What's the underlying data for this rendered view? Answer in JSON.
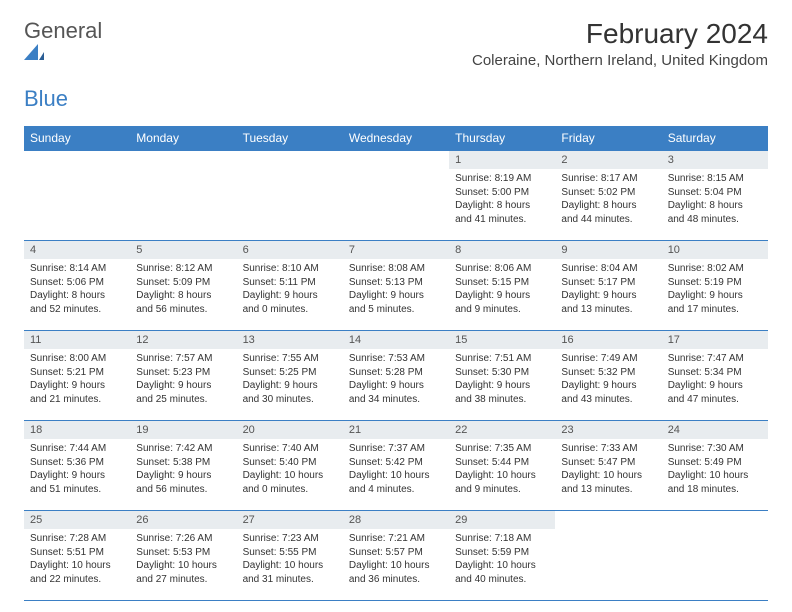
{
  "logo": {
    "text_general": "General",
    "text_blue": "Blue"
  },
  "header": {
    "month_title": "February 2024",
    "location": "Coleraine, Northern Ireland, United Kingdom"
  },
  "style": {
    "header_bg": "#3b7fc4",
    "header_fg": "#ffffff",
    "daynum_bg": "#e8ecef",
    "border_color": "#3b7fc4",
    "body_bg": "#ffffff",
    "text_color": "#333333",
    "cell_fontsize": 10,
    "header_fontsize": 12,
    "title_fontsize": 28,
    "location_fontsize": 15
  },
  "day_headers": [
    "Sunday",
    "Monday",
    "Tuesday",
    "Wednesday",
    "Thursday",
    "Friday",
    "Saturday"
  ],
  "weeks": [
    [
      null,
      null,
      null,
      null,
      {
        "n": "1",
        "sr": "Sunrise: 8:19 AM",
        "ss": "Sunset: 5:00 PM",
        "d1": "Daylight: 8 hours",
        "d2": "and 41 minutes."
      },
      {
        "n": "2",
        "sr": "Sunrise: 8:17 AM",
        "ss": "Sunset: 5:02 PM",
        "d1": "Daylight: 8 hours",
        "d2": "and 44 minutes."
      },
      {
        "n": "3",
        "sr": "Sunrise: 8:15 AM",
        "ss": "Sunset: 5:04 PM",
        "d1": "Daylight: 8 hours",
        "d2": "and 48 minutes."
      }
    ],
    [
      {
        "n": "4",
        "sr": "Sunrise: 8:14 AM",
        "ss": "Sunset: 5:06 PM",
        "d1": "Daylight: 8 hours",
        "d2": "and 52 minutes."
      },
      {
        "n": "5",
        "sr": "Sunrise: 8:12 AM",
        "ss": "Sunset: 5:09 PM",
        "d1": "Daylight: 8 hours",
        "d2": "and 56 minutes."
      },
      {
        "n": "6",
        "sr": "Sunrise: 8:10 AM",
        "ss": "Sunset: 5:11 PM",
        "d1": "Daylight: 9 hours",
        "d2": "and 0 minutes."
      },
      {
        "n": "7",
        "sr": "Sunrise: 8:08 AM",
        "ss": "Sunset: 5:13 PM",
        "d1": "Daylight: 9 hours",
        "d2": "and 5 minutes."
      },
      {
        "n": "8",
        "sr": "Sunrise: 8:06 AM",
        "ss": "Sunset: 5:15 PM",
        "d1": "Daylight: 9 hours",
        "d2": "and 9 minutes."
      },
      {
        "n": "9",
        "sr": "Sunrise: 8:04 AM",
        "ss": "Sunset: 5:17 PM",
        "d1": "Daylight: 9 hours",
        "d2": "and 13 minutes."
      },
      {
        "n": "10",
        "sr": "Sunrise: 8:02 AM",
        "ss": "Sunset: 5:19 PM",
        "d1": "Daylight: 9 hours",
        "d2": "and 17 minutes."
      }
    ],
    [
      {
        "n": "11",
        "sr": "Sunrise: 8:00 AM",
        "ss": "Sunset: 5:21 PM",
        "d1": "Daylight: 9 hours",
        "d2": "and 21 minutes."
      },
      {
        "n": "12",
        "sr": "Sunrise: 7:57 AM",
        "ss": "Sunset: 5:23 PM",
        "d1": "Daylight: 9 hours",
        "d2": "and 25 minutes."
      },
      {
        "n": "13",
        "sr": "Sunrise: 7:55 AM",
        "ss": "Sunset: 5:25 PM",
        "d1": "Daylight: 9 hours",
        "d2": "and 30 minutes."
      },
      {
        "n": "14",
        "sr": "Sunrise: 7:53 AM",
        "ss": "Sunset: 5:28 PM",
        "d1": "Daylight: 9 hours",
        "d2": "and 34 minutes."
      },
      {
        "n": "15",
        "sr": "Sunrise: 7:51 AM",
        "ss": "Sunset: 5:30 PM",
        "d1": "Daylight: 9 hours",
        "d2": "and 38 minutes."
      },
      {
        "n": "16",
        "sr": "Sunrise: 7:49 AM",
        "ss": "Sunset: 5:32 PM",
        "d1": "Daylight: 9 hours",
        "d2": "and 43 minutes."
      },
      {
        "n": "17",
        "sr": "Sunrise: 7:47 AM",
        "ss": "Sunset: 5:34 PM",
        "d1": "Daylight: 9 hours",
        "d2": "and 47 minutes."
      }
    ],
    [
      {
        "n": "18",
        "sr": "Sunrise: 7:44 AM",
        "ss": "Sunset: 5:36 PM",
        "d1": "Daylight: 9 hours",
        "d2": "and 51 minutes."
      },
      {
        "n": "19",
        "sr": "Sunrise: 7:42 AM",
        "ss": "Sunset: 5:38 PM",
        "d1": "Daylight: 9 hours",
        "d2": "and 56 minutes."
      },
      {
        "n": "20",
        "sr": "Sunrise: 7:40 AM",
        "ss": "Sunset: 5:40 PM",
        "d1": "Daylight: 10 hours",
        "d2": "and 0 minutes."
      },
      {
        "n": "21",
        "sr": "Sunrise: 7:37 AM",
        "ss": "Sunset: 5:42 PM",
        "d1": "Daylight: 10 hours",
        "d2": "and 4 minutes."
      },
      {
        "n": "22",
        "sr": "Sunrise: 7:35 AM",
        "ss": "Sunset: 5:44 PM",
        "d1": "Daylight: 10 hours",
        "d2": "and 9 minutes."
      },
      {
        "n": "23",
        "sr": "Sunrise: 7:33 AM",
        "ss": "Sunset: 5:47 PM",
        "d1": "Daylight: 10 hours",
        "d2": "and 13 minutes."
      },
      {
        "n": "24",
        "sr": "Sunrise: 7:30 AM",
        "ss": "Sunset: 5:49 PM",
        "d1": "Daylight: 10 hours",
        "d2": "and 18 minutes."
      }
    ],
    [
      {
        "n": "25",
        "sr": "Sunrise: 7:28 AM",
        "ss": "Sunset: 5:51 PM",
        "d1": "Daylight: 10 hours",
        "d2": "and 22 minutes."
      },
      {
        "n": "26",
        "sr": "Sunrise: 7:26 AM",
        "ss": "Sunset: 5:53 PM",
        "d1": "Daylight: 10 hours",
        "d2": "and 27 minutes."
      },
      {
        "n": "27",
        "sr": "Sunrise: 7:23 AM",
        "ss": "Sunset: 5:55 PM",
        "d1": "Daylight: 10 hours",
        "d2": "and 31 minutes."
      },
      {
        "n": "28",
        "sr": "Sunrise: 7:21 AM",
        "ss": "Sunset: 5:57 PM",
        "d1": "Daylight: 10 hours",
        "d2": "and 36 minutes."
      },
      {
        "n": "29",
        "sr": "Sunrise: 7:18 AM",
        "ss": "Sunset: 5:59 PM",
        "d1": "Daylight: 10 hours",
        "d2": "and 40 minutes."
      },
      null,
      null
    ]
  ]
}
